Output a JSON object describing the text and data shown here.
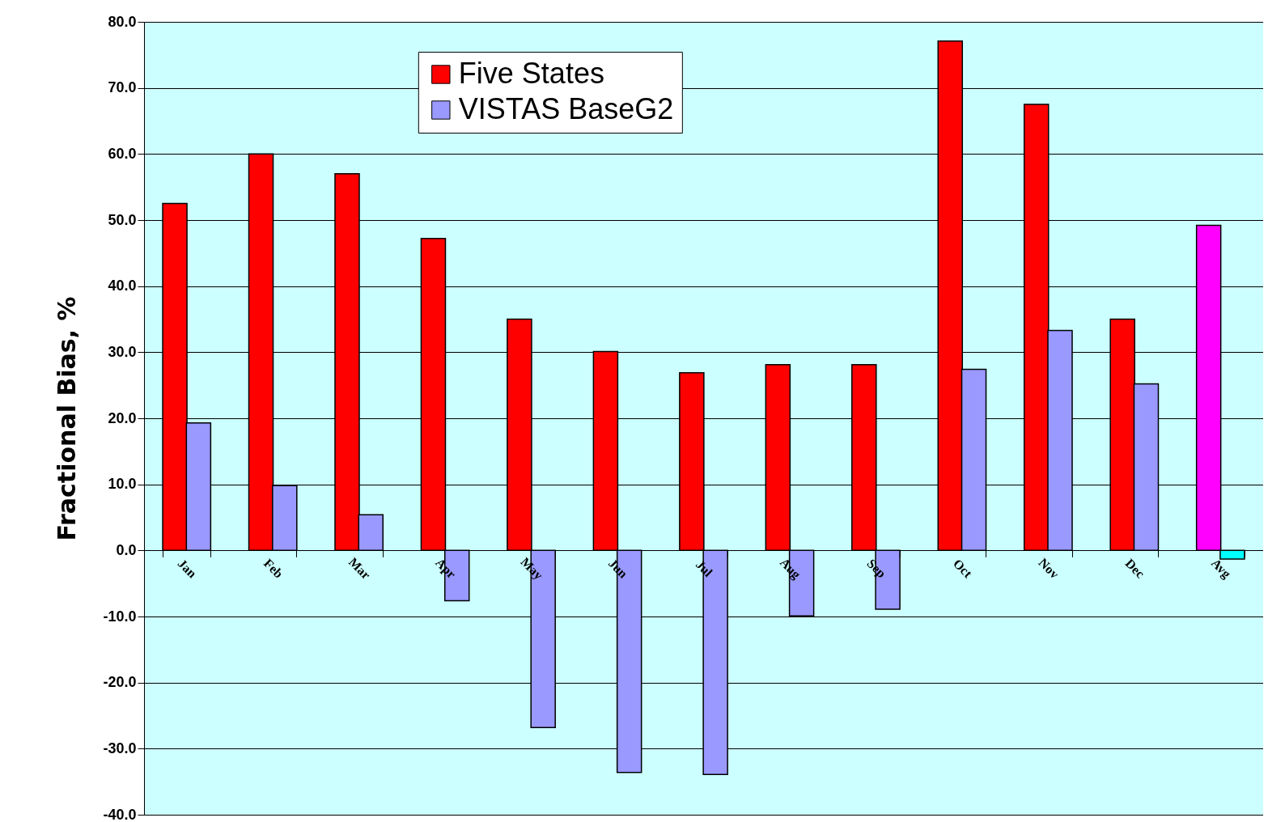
{
  "chart_data": {
    "type": "bar",
    "ylabel": "Fractional Bias, %",
    "categories": [
      "Jan",
      "Feb",
      "Mar",
      "Apr",
      "May",
      "Jun",
      "Jul",
      "Aug",
      "Sep",
      "Oct",
      "Nov",
      "Dec",
      "Avg"
    ],
    "series": [
      {
        "name": "Five States",
        "color": "#ff0000",
        "colors": [
          "#ff0000",
          "#ff0000",
          "#ff0000",
          "#ff0000",
          "#ff0000",
          "#ff0000",
          "#ff0000",
          "#ff0000",
          "#ff0000",
          "#ff0000",
          "#ff0000",
          "#ff0000",
          "#ff00ff"
        ],
        "values": [
          52.5,
          60.0,
          57.0,
          47.2,
          35.0,
          30.1,
          26.9,
          28.1,
          28.1,
          77.1,
          67.5,
          35.0,
          49.2
        ]
      },
      {
        "name": "VISTAS BaseG2",
        "color": "#9999ff",
        "colors": [
          "#9999ff",
          "#9999ff",
          "#9999ff",
          "#9999ff",
          "#9999ff",
          "#9999ff",
          "#9999ff",
          "#9999ff",
          "#9999ff",
          "#9999ff",
          "#9999ff",
          "#9999ff",
          "#00ffff"
        ],
        "values": [
          19.3,
          9.8,
          5.4,
          -7.6,
          -26.8,
          -33.6,
          -33.9,
          -9.9,
          -8.9,
          27.4,
          33.3,
          25.2,
          -1.3
        ]
      }
    ],
    "ylim": [
      -40,
      80
    ],
    "yticks": [
      {
        "value": -40,
        "label": "-40.0"
      },
      {
        "value": -30,
        "label": "-30.0"
      },
      {
        "value": -20,
        "label": "-20.0"
      },
      {
        "value": -10,
        "label": "-10.0"
      },
      {
        "value": 0,
        "label": "0.0"
      },
      {
        "value": 10,
        "label": "10.0"
      },
      {
        "value": 20,
        "label": "20.0"
      },
      {
        "value": 30,
        "label": "30.0"
      },
      {
        "value": 40,
        "label": "40.0"
      },
      {
        "value": 50,
        "label": "50.0"
      },
      {
        "value": 60,
        "label": "60.0"
      },
      {
        "value": 70,
        "label": "70.0"
      },
      {
        "value": 80,
        "label": "80.0"
      }
    ],
    "grid": "y",
    "legend": "top"
  }
}
